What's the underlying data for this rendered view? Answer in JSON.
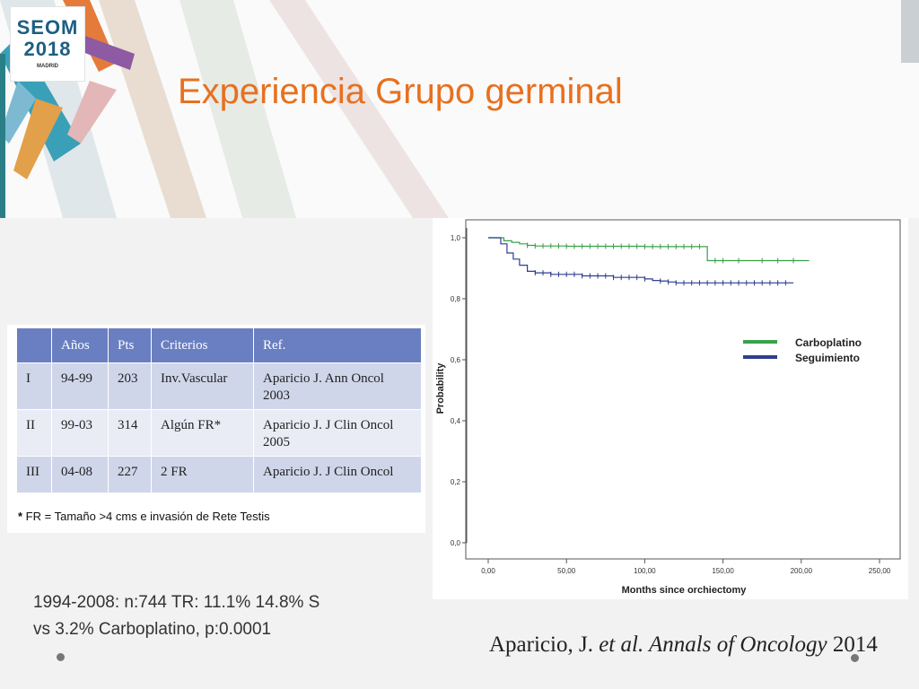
{
  "slide": {
    "title": "Experiencia Grupo germinal",
    "logo": {
      "line1": "SEOM",
      "line2": "2018",
      "line3": "MADRID"
    },
    "summary_line1": "1994-2008: n:744 TR: 11.1% 14.8% S",
    "summary_line2": "vs 3.2% Carboplatino, p:0.0001",
    "citation_author": "Aparicio, J. ",
    "citation_etal": "et al.",
    "citation_journal": " Annals of Oncology",
    "citation_year": " 2014",
    "footnote_star": "*",
    "footnote_text": " FR = Tamaño >4 cms e invasión de Rete Testis"
  },
  "table": {
    "headers": [
      "",
      "Años",
      "Pts",
      "Criterios",
      "Ref."
    ],
    "rows": [
      [
        "I",
        "94-99",
        "203",
        "Inv.Vascular",
        "Aparicio J. Ann Oncol 2003"
      ],
      [
        "II",
        "99-03",
        "314",
        "Algún FR*",
        "Aparicio J. J Clin Oncol 2005"
      ],
      [
        "III",
        "04-08",
        "227",
        "2 FR",
        "Aparicio J. J Clin Oncol"
      ]
    ]
  },
  "colors": {
    "title": "#e8701f",
    "carboplatino": "#3aa04a",
    "seguimiento": "#2e3f8f",
    "table_header": "#6a7fc1"
  },
  "chart_data": {
    "type": "line",
    "xlabel": "Months since orchiectomy",
    "ylabel": "Probability",
    "xlim": [
      0,
      250
    ],
    "ylim": [
      0,
      1
    ],
    "x_ticks": [
      "0,00",
      "50,00",
      "100,00",
      "150,00",
      "200,00",
      "250,00"
    ],
    "y_ticks": [
      "0,0",
      "0,2",
      "0,4",
      "0,6",
      "0,8",
      "1,0"
    ],
    "legend_position": "right",
    "series": [
      {
        "name": "Carboplatino",
        "color": "#3aa04a",
        "points": [
          [
            0,
            1.0
          ],
          [
            8,
            1.0
          ],
          [
            10,
            0.99
          ],
          [
            15,
            0.985
          ],
          [
            20,
            0.98
          ],
          [
            25,
            0.975
          ],
          [
            30,
            0.973
          ],
          [
            50,
            0.972
          ],
          [
            100,
            0.971
          ],
          [
            138,
            0.971
          ],
          [
            140,
            0.925
          ],
          [
            205,
            0.925
          ]
        ],
        "censors": [
          25,
          30,
          35,
          40,
          45,
          50,
          55,
          60,
          65,
          70,
          75,
          80,
          85,
          90,
          95,
          100,
          105,
          110,
          115,
          120,
          125,
          130,
          135,
          145,
          150,
          160,
          175,
          185,
          195
        ]
      },
      {
        "name": "Seguimiento",
        "color": "#2e3f8f",
        "points": [
          [
            0,
            1.0
          ],
          [
            5,
            1.0
          ],
          [
            8,
            0.98
          ],
          [
            12,
            0.95
          ],
          [
            16,
            0.93
          ],
          [
            20,
            0.91
          ],
          [
            25,
            0.89
          ],
          [
            30,
            0.885
          ],
          [
            40,
            0.88
          ],
          [
            60,
            0.875
          ],
          [
            80,
            0.87
          ],
          [
            100,
            0.865
          ],
          [
            105,
            0.86
          ],
          [
            110,
            0.858
          ],
          [
            115,
            0.855
          ],
          [
            120,
            0.852
          ],
          [
            195,
            0.852
          ]
        ],
        "censors": [
          30,
          35,
          40,
          45,
          50,
          55,
          60,
          65,
          70,
          75,
          80,
          85,
          90,
          95,
          100,
          110,
          115,
          120,
          125,
          130,
          135,
          140,
          145,
          150,
          155,
          160,
          165,
          170,
          175,
          180,
          185,
          190
        ]
      }
    ]
  }
}
